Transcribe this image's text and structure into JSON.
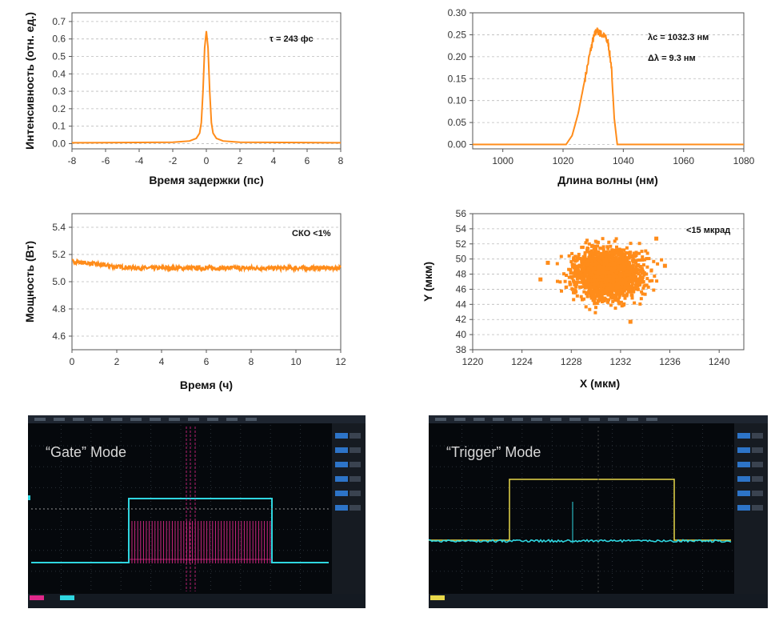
{
  "colors": {
    "series": "#ff8c1a",
    "grid": "#bbbbbb",
    "scope_bg": "#05080c",
    "cyan": "#2fd6e0",
    "magenta": "#e0288a",
    "yellow": "#e8d84a"
  },
  "chart_data": [
    {
      "id": "autocorrelation",
      "type": "line",
      "xlabel": "Время задержки (пс)",
      "ylabel": "Интенсивность (отн. ед.)",
      "xlim": [
        -8,
        8
      ],
      "ylim": [
        -0.03,
        0.75
      ],
      "xticks": [
        -8,
        -6,
        -4,
        -2,
        0,
        2,
        4,
        6,
        8
      ],
      "yticks": [
        0.0,
        0.1,
        0.2,
        0.3,
        0.4,
        0.5,
        0.6,
        0.7
      ],
      "ytick_labels": [
        "0.0",
        "0.1",
        "0.2",
        "0.3",
        "0.4",
        "0.5",
        "0.6",
        "0.7"
      ],
      "annotations": [
        "τ = 243 фс"
      ],
      "x": [
        -8,
        -2,
        -1,
        -0.6,
        -0.4,
        -0.3,
        -0.2,
        -0.1,
        0,
        0.1,
        0.2,
        0.3,
        0.4,
        0.6,
        1,
        2,
        8
      ],
      "y": [
        0.005,
        0.008,
        0.015,
        0.03,
        0.06,
        0.12,
        0.3,
        0.55,
        0.645,
        0.55,
        0.3,
        0.12,
        0.06,
        0.03,
        0.015,
        0.008,
        0.005
      ]
    },
    {
      "id": "spectrum",
      "type": "line",
      "xlabel": "Длина волны (нм)",
      "ylabel": "",
      "xlim": [
        990,
        1080
      ],
      "ylim": [
        -0.01,
        0.3
      ],
      "xticks": [
        1000,
        1020,
        1040,
        1060,
        1080
      ],
      "yticks": [
        0.0,
        0.05,
        0.1,
        0.15,
        0.2,
        0.25,
        0.3
      ],
      "ytick_labels": [
        "0.00",
        "0.05",
        "0.10",
        "0.15",
        "0.20",
        "0.25",
        "0.30"
      ],
      "annotations": [
        "λc = 1032.3 нм",
        "Δλ = 9.3 нм"
      ],
      "x": [
        990,
        1021,
        1023,
        1025,
        1027,
        1029,
        1030,
        1031,
        1032,
        1033,
        1034,
        1035,
        1036,
        1037,
        1038,
        1080
      ],
      "y": [
        0.0,
        0.0,
        0.02,
        0.07,
        0.14,
        0.21,
        0.24,
        0.26,
        0.255,
        0.25,
        0.245,
        0.23,
        0.18,
        0.06,
        0.0,
        0.0
      ]
    },
    {
      "id": "power_stability",
      "type": "line",
      "xlabel": "Время (ч)",
      "ylabel": "Мощность (Вт)",
      "xlim": [
        0,
        12
      ],
      "ylim": [
        4.5,
        5.5
      ],
      "xticks": [
        0,
        2,
        4,
        6,
        8,
        10,
        12
      ],
      "yticks": [
        4.6,
        4.8,
        5.0,
        5.2,
        5.4
      ],
      "ytick_labels": [
        "4.6",
        "4.8",
        "5.0",
        "5.2",
        "5.4"
      ],
      "annotations": [
        "СКО <1%"
      ],
      "x": [
        0,
        1,
        2,
        3,
        4,
        6,
        8,
        10,
        12
      ],
      "y": [
        5.15,
        5.13,
        5.11,
        5.1,
        5.1,
        5.1,
        5.1,
        5.1,
        5.1
      ]
    },
    {
      "id": "beam_pointing",
      "type": "scatter",
      "xlabel": "X (мкм)",
      "ylabel": "Y (мкм)",
      "xlim": [
        1220,
        1242
      ],
      "ylim": [
        38,
        56
      ],
      "xticks": [
        1220,
        1224,
        1228,
        1232,
        1236,
        1240
      ],
      "yticks": [
        38,
        40,
        42,
        44,
        46,
        48,
        50,
        52,
        54,
        56
      ],
      "ytick_labels": [
        "38",
        "40",
        "42",
        "44",
        "46",
        "48",
        "50",
        "52",
        "54",
        "56"
      ],
      "annotations": [
        "<15 мкрад"
      ],
      "center": [
        1231,
        48
      ],
      "spread": [
        1.3,
        1.6
      ],
      "outliers": [
        [
          1226.1,
          49.5
        ],
        [
          1225.5,
          47.3
        ],
        [
          1232.8,
          41.7
        ],
        [
          1235.6,
          49.1
        ],
        [
          1234.9,
          52.7
        ]
      ]
    }
  ],
  "scopes": {
    "gate": {
      "title": "“Gate” Mode"
    },
    "trigger": {
      "title": "“Trigger” Mode"
    }
  }
}
